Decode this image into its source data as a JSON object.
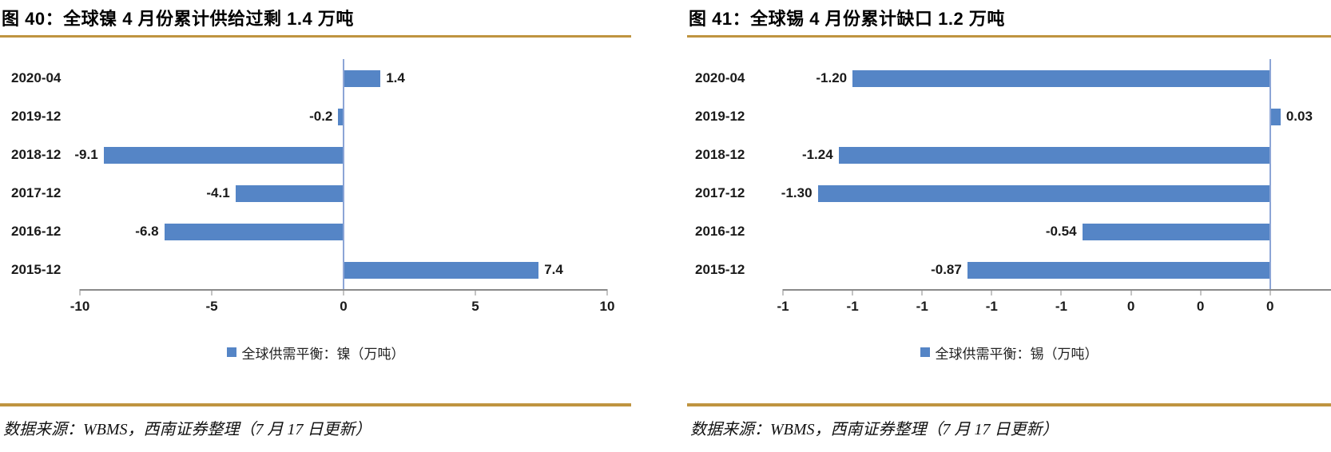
{
  "colors": {
    "bar": "#5585C6",
    "zero_line": "#8CA5D6",
    "axis": "#8A8A8A",
    "gold_rule": "#BF9440",
    "text": "#1A1A1A"
  },
  "panels": [
    {
      "title": "图 40：全球镍 4 月份累计供给过剩 1.4 万吨",
      "source": "数据来源：WBMS，西南证券整理（7 月 17 日更新）"
    },
    {
      "title": "图 41：全球锡 4 月份累计缺口 1.2 万吨",
      "source": "数据来源：WBMS，西南证券整理（7 月 17 日更新）"
    }
  ],
  "chart_data": [
    {
      "type": "bar",
      "orientation": "horizontal",
      "title": "图 40：全球镍 4 月份累计供给过剩 1.4 万吨",
      "categories": [
        "2020-04",
        "2019-12",
        "2018-12",
        "2017-12",
        "2016-12",
        "2015-12"
      ],
      "values": [
        1.4,
        -0.2,
        -9.1,
        -4.1,
        -6.8,
        7.4
      ],
      "value_labels": [
        "1.4",
        "-0.2",
        "-9.1",
        "-4.1",
        "-6.8",
        "7.4"
      ],
      "xlim": [
        -10,
        10
      ],
      "xticks": [
        {
          "v": -10,
          "label": "-10"
        },
        {
          "v": -5,
          "label": "-5"
        },
        {
          "v": 0,
          "label": "0"
        },
        {
          "v": 5,
          "label": "5"
        },
        {
          "v": 10,
          "label": "10"
        }
      ],
      "xlabel": "",
      "ylabel": "",
      "grid": false,
      "legend": "全球供需平衡：镍（万吨）",
      "legend_position": "bottom"
    },
    {
      "type": "bar",
      "orientation": "horizontal",
      "title": "图 41：全球锡 4 月份累计缺口 1.2 万吨",
      "categories": [
        "2020-04",
        "2019-12",
        "2018-12",
        "2017-12",
        "2016-12",
        "2015-12"
      ],
      "values": [
        -1.2,
        0.03,
        -1.24,
        -1.3,
        -0.54,
        -0.87
      ],
      "value_labels": [
        "-1.20",
        "0.03",
        "-1.24",
        "-1.30",
        "-0.54",
        "-0.87"
      ],
      "xlim": [
        -1.4,
        0.175
      ],
      "xticks": [
        {
          "v": -1.4,
          "label": "-1"
        },
        {
          "v": -1.2,
          "label": "-1"
        },
        {
          "v": -1.0,
          "label": "-1"
        },
        {
          "v": -0.8,
          "label": "-1"
        },
        {
          "v": -0.6,
          "label": "-1"
        },
        {
          "v": -0.4,
          "label": "0"
        },
        {
          "v": -0.2,
          "label": "0"
        },
        {
          "v": 0,
          "label": "0"
        }
      ],
      "xlabel": "",
      "ylabel": "",
      "grid": false,
      "legend": "全球供需平衡：锡（万吨）",
      "legend_position": "bottom"
    }
  ]
}
